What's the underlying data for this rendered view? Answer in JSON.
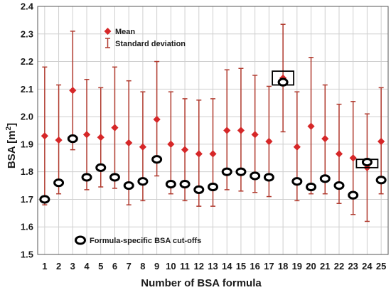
{
  "chart_data": {
    "type": "scatter",
    "xlabel": "Number of BSA formula",
    "ylabel": "BSA [m",
    "ylabel_sup": "2",
    "ylabel_close": "]",
    "ylim": [
      1.5,
      2.4
    ],
    "yticks": [
      "1.5",
      "1.6",
      "1.7",
      "1.8",
      "1.9",
      "2.0",
      "2.1",
      "2.2",
      "2.3",
      "2.4"
    ],
    "categories": [
      "1",
      "2",
      "3",
      "4",
      "5",
      "6",
      "7",
      "8",
      "9",
      "10",
      "11",
      "12",
      "13",
      "14",
      "15",
      "16",
      "17",
      "18",
      "19",
      "20",
      "21",
      "22",
      "23",
      "24",
      "25"
    ],
    "grid": true,
    "legend_placement": "top-left",
    "series": [
      {
        "name": "Mean",
        "color": "#d62728",
        "values": [
          1.93,
          1.915,
          2.095,
          1.935,
          1.925,
          1.96,
          1.905,
          1.89,
          1.99,
          1.9,
          1.88,
          1.865,
          1.865,
          1.95,
          1.95,
          1.935,
          1.91,
          2.14,
          1.89,
          1.965,
          1.92,
          1.865,
          1.85,
          1.815,
          1.91
        ]
      },
      {
        "name": "Standard deviation",
        "color": "#b03a2e",
        "lower": [
          1.68,
          1.72,
          1.88,
          1.735,
          1.745,
          1.74,
          1.68,
          1.695,
          1.785,
          1.72,
          1.695,
          1.675,
          1.675,
          1.735,
          1.73,
          1.725,
          1.71,
          1.945,
          1.695,
          1.72,
          1.72,
          1.685,
          1.645,
          1.62,
          1.72
        ],
        "upper": [
          2.18,
          2.115,
          2.31,
          2.135,
          2.105,
          2.18,
          2.13,
          2.09,
          2.2,
          2.09,
          2.065,
          2.06,
          2.065,
          2.17,
          2.175,
          2.15,
          2.11,
          2.335,
          2.09,
          2.215,
          2.115,
          2.045,
          2.055,
          2.01,
          2.105
        ]
      },
      {
        "name": "Formula-specific BSA cut-offs",
        "color": "#000000",
        "values": [
          1.7,
          1.76,
          1.92,
          1.78,
          1.815,
          1.78,
          1.75,
          1.765,
          1.845,
          1.755,
          1.755,
          1.735,
          1.745,
          1.8,
          1.8,
          1.785,
          1.78,
          2.125,
          1.765,
          1.745,
          1.775,
          1.75,
          1.715,
          1.835,
          1.77
        ]
      }
    ],
    "highlight_boxes": [
      {
        "category": "18",
        "y_low": 2.115,
        "y_high": 2.165
      },
      {
        "category": "24",
        "y_low": 1.815,
        "y_high": 1.845
      }
    ]
  }
}
